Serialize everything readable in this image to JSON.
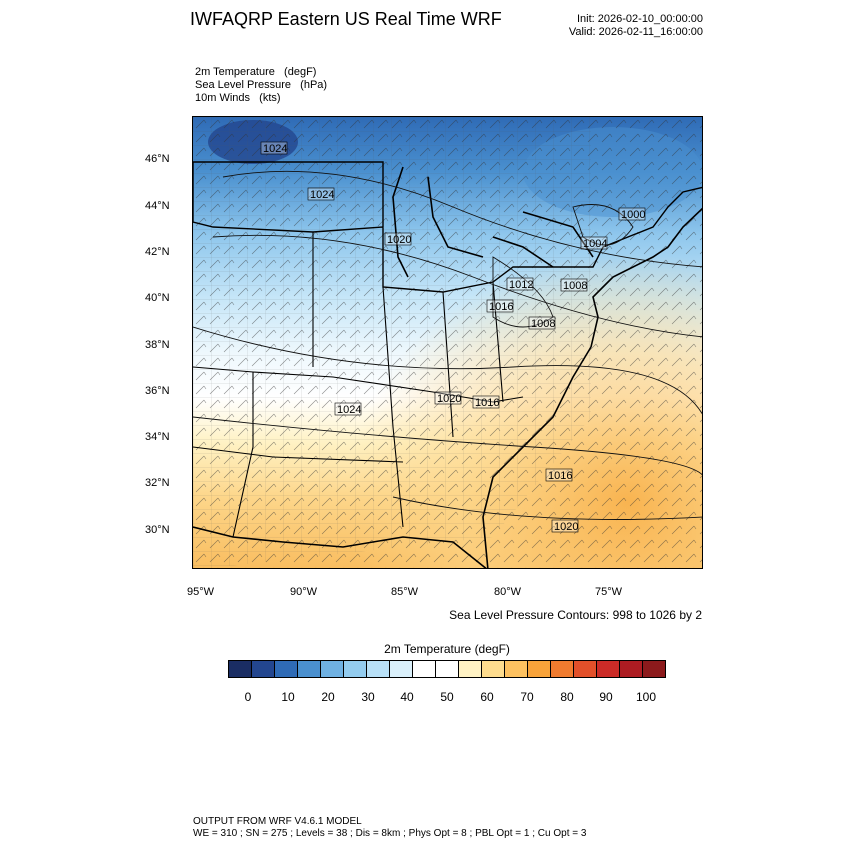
{
  "title": "IWFAQRP Eastern US Real Time WRF",
  "init_label": "Init: 2026-02-10_00:00:00",
  "valid_label": "Valid: 2026-02-11_16:00:00",
  "fields": {
    "temperature": "2m Temperature   (degF)",
    "pressure": "Sea Level Pressure   (hPa)",
    "winds": "10m Winds   (kts)"
  },
  "lat_labels": [
    "46°N",
    "44°N",
    "42°N",
    "40°N",
    "38°N",
    "36°N",
    "34°N",
    "32°N",
    "30°N"
  ],
  "lon_labels": [
    "95°W",
    "90°W",
    "85°W",
    "80°W",
    "75°W"
  ],
  "contour_labels": [
    "1024",
    "1024",
    "1020",
    "1000",
    "1004",
    "1012",
    "1008",
    "1016",
    "1008",
    "1020",
    "1016",
    "1024",
    "1016",
    "1020"
  ],
  "contour_info": "Sea Level Pressure Contours: 998 to 1026 by 2",
  "colorbar": {
    "title": "2m Temperature  (degF)",
    "labels": [
      "0",
      "10",
      "20",
      "30",
      "40",
      "50",
      "60",
      "70",
      "80",
      "90",
      "100"
    ],
    "colors": [
      "#1a2d63",
      "#23468f",
      "#2f6bb6",
      "#4a90cf",
      "#6fb1e2",
      "#93ccef",
      "#b8e0f7",
      "#daf0fb",
      "#ffffff",
      "#ffffff",
      "#fff2c4",
      "#fedc8e",
      "#fdc160",
      "#f8a33a",
      "#f07b2f",
      "#e2502a",
      "#cb2b27",
      "#ad1c22",
      "#8c1a1c"
    ]
  },
  "model_info": {
    "line1": "OUTPUT FROM WRF V4.6.1 MODEL",
    "line2": "WE = 310 ; SN = 275 ; Levels = 38 ; Dis = 8km ; Phys Opt = 8 ; PBL Opt = 1 ; Cu Opt = 3"
  }
}
